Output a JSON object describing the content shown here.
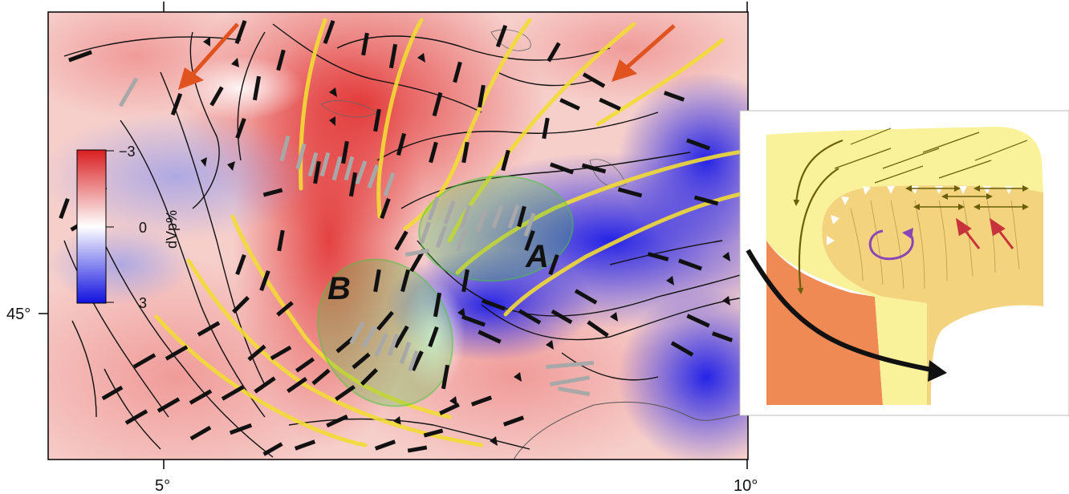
{
  "map": {
    "lat_label": "45°",
    "lon_labels": [
      "5°",
      "10°"
    ]
  },
  "colorbar": {
    "title": "dVp%",
    "ticks": [
      "−3",
      "0",
      "3"
    ],
    "colors": {
      "slow": "#d81e20",
      "neutral": "#ffffff",
      "fast": "#1010e0"
    }
  },
  "zones": [
    {
      "label": "A",
      "color": "#46c83c"
    },
    {
      "label": "B",
      "color": "#46c83c"
    }
  ],
  "colors": {
    "fast_axis_black": "#111111",
    "fast_axis_grey": "#a8a8a8",
    "trend_yellow": "#f2dc34",
    "motion_arrow": "#e0521e",
    "inset_yellow": "#faf29a",
    "inset_tan": "#f3d37e",
    "inset_orange": "#ef8a55",
    "inset_olive": "#6b5e0a",
    "inset_purple": "#8a46b4",
    "inset_red": "#c8323a"
  }
}
